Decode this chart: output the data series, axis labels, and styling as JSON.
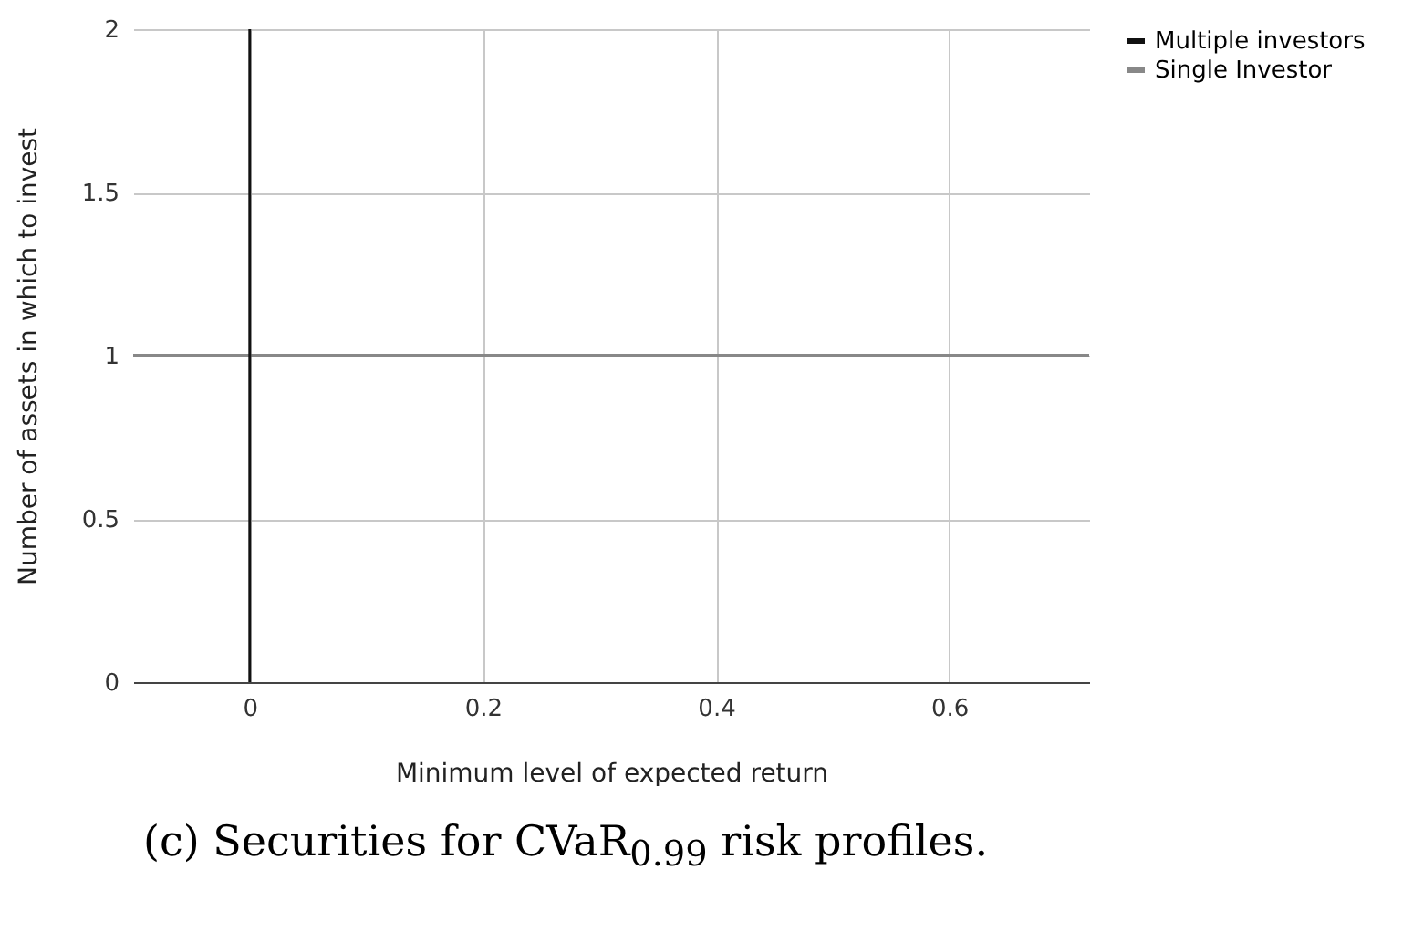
{
  "chart_data": {
    "type": "line",
    "title": "(c) Securities for CVaR$_{0.99}$ risk profiles.",
    "xlabel": "Minimum level of expected return",
    "ylabel": "Number of assets in which to invest",
    "x": [
      -0.1,
      0.72
    ],
    "series": [
      {
        "name": "Multiple investors",
        "color": "#111111",
        "values": [
          null,
          null
        ]
      },
      {
        "name": "Single Investor",
        "color": "#888888",
        "values": [
          1,
          1
        ]
      }
    ],
    "xlim": [
      -0.1,
      0.72
    ],
    "xticks": [
      0,
      0.2,
      0.4,
      0.6
    ],
    "ylim": [
      0,
      2
    ],
    "yticks": [
      0,
      0.5,
      1,
      1.5,
      2
    ],
    "ref_lines": [
      {
        "axis": "x",
        "value": 0,
        "color": "#111111"
      }
    ],
    "grid": true,
    "legend": "top right"
  }
}
